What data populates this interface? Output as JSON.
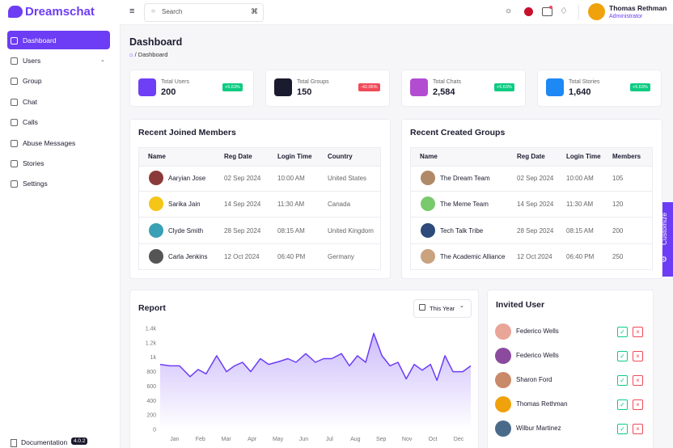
{
  "brand": "Dreamschat",
  "sidebar": {
    "items": [
      "Dashboard",
      "Users",
      "Group",
      "Chat",
      "Calls",
      "Abuse Messages",
      "Stories",
      "Settings"
    ],
    "documentation": "Documentation",
    "version": "4.0.2"
  },
  "header": {
    "search": "Search",
    "shortcut": "⌘",
    "user": {
      "name": "Thomas Rethman",
      "role": "Administrator"
    }
  },
  "page": {
    "title": "Dashboard",
    "breadcrumb": "/ Dashboard"
  },
  "stats": [
    {
      "label": "Total Users",
      "value": "200",
      "change": "+5.63%"
    },
    {
      "label": "Total Groups",
      "value": "150",
      "change": "-42.05%"
    },
    {
      "label": "Total Chats",
      "value": "2,584",
      "change": "+5.63%"
    },
    {
      "label": "Total Stories",
      "value": "1,640",
      "change": "+5.63%"
    }
  ],
  "members": {
    "title": "Recent Joined Members",
    "columns": [
      "Name",
      "Reg Date",
      "Login Time",
      "Country"
    ],
    "rows": [
      [
        "Aaryian Jose",
        "02 Sep 2024",
        "10:00 AM",
        "United States"
      ],
      [
        "Sarika Jain",
        "14 Sep 2024",
        "11:30 AM",
        "Canada"
      ],
      [
        "Clyde Smith",
        "28 Sep 2024",
        "08:15 AM",
        "United Kingdom"
      ],
      [
        "Carla Jenkins",
        "12 Oct 2024",
        "06:40 PM",
        "Germany"
      ]
    ]
  },
  "groups": {
    "title": "Recent Created Groups",
    "columns": [
      "Name",
      "Reg Date",
      "Login Time",
      "Members"
    ],
    "rows": [
      [
        "The Dream Team",
        "02 Sep 2024",
        "10:00 AM",
        "105"
      ],
      [
        "The Meme Team",
        "14 Sep 2024",
        "11:30 AM",
        "120"
      ],
      [
        "Tech Talk Tribe",
        "28 Sep 2024",
        "08:15 AM",
        "200"
      ],
      [
        "The Academic Alliance",
        "12 Oct 2024",
        "06:40 PM",
        "250"
      ]
    ]
  },
  "report": {
    "title": "Report",
    "filter": "This Year",
    "chart": {
      "type": "line",
      "color": "#6c3df4",
      "x": [
        -0.56,
        -0.19,
        0.19,
        0.6,
        0.91,
        1.22,
        1.63,
        2.01,
        2.32,
        2.63,
        2.95,
        3.32,
        3.64,
        4.04,
        4.39,
        4.7,
        5.08,
        5.45,
        5.77,
        6.08,
        6.46,
        6.77,
        7.08,
        7.4,
        7.71,
        8.03,
        8.34,
        8.65,
        8.97,
        9.28,
        9.59,
        9.91,
        10.16,
        10.47,
        10.78,
        11.16,
        11.47
      ],
      "values": [
        900,
        880,
        880,
        730,
        830,
        770,
        1020,
        800,
        880,
        930,
        800,
        980,
        900,
        940,
        980,
        930,
        1050,
        930,
        980,
        980,
        1050,
        880,
        1020,
        930,
        1330,
        1020,
        880,
        930,
        700,
        900,
        820,
        900,
        680,
        1020,
        800,
        800,
        880
      ],
      "xlim": [
        -0.56,
        11.47
      ],
      "xticks": [
        {
          "value": 0,
          "label": "Jan"
        },
        {
          "value": 1,
          "label": "Feb"
        },
        {
          "value": 2,
          "label": "Mar"
        },
        {
          "value": 3,
          "label": "Apr"
        },
        {
          "value": 4,
          "label": "May"
        },
        {
          "value": 5,
          "label": "Jun"
        },
        {
          "value": 6,
          "label": "Jul"
        },
        {
          "value": 7,
          "label": "Aug"
        },
        {
          "value": 8,
          "label": "Sep"
        },
        {
          "value": 9,
          "label": "Nov"
        },
        {
          "value": 10,
          "label": "Oct"
        },
        {
          "value": 11,
          "label": "Dec"
        }
      ],
      "ylim": [
        0,
        1400
      ],
      "yticks": [
        0,
        200,
        400,
        600,
        800,
        {
          "value": 1000,
          "label": "1k"
        },
        {
          "value": 1200,
          "label": "1.2k"
        },
        {
          "value": 1400,
          "label": "1.4k"
        }
      ]
    }
  },
  "invited": {
    "title": "Invited User",
    "users": [
      "Federico Wells",
      "Federico Wells",
      "Sharon Ford",
      "Thomas Rethman",
      "Wilbur Martinez"
    ]
  },
  "customize": "Customize"
}
